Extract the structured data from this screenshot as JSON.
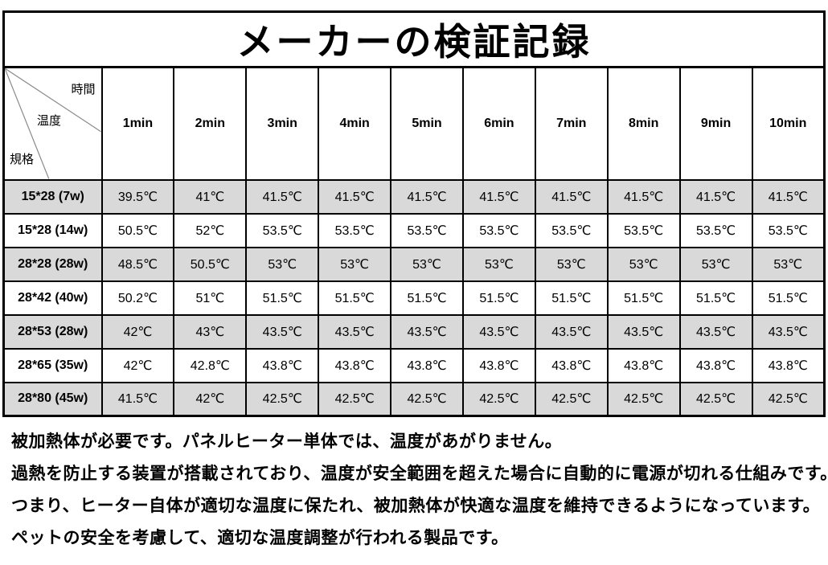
{
  "title": "メーカーの検証記録",
  "table": {
    "corner": {
      "time_label": "時間",
      "temp_label": "温度",
      "spec_label": "規格"
    },
    "time_columns": [
      "1min",
      "2min",
      "3min",
      "4min",
      "5min",
      "6min",
      "7min",
      "8min",
      "9min",
      "10min"
    ],
    "rows": [
      {
        "spec": "15*28 (7w)",
        "shaded": true,
        "temps": [
          "39.5℃",
          "41℃",
          "41.5℃",
          "41.5℃",
          "41.5℃",
          "41.5℃",
          "41.5℃",
          "41.5℃",
          "41.5℃",
          "41.5℃"
        ]
      },
      {
        "spec": "15*28 (14w)",
        "shaded": false,
        "temps": [
          "50.5℃",
          "52℃",
          "53.5℃",
          "53.5℃",
          "53.5℃",
          "53.5℃",
          "53.5℃",
          "53.5℃",
          "53.5℃",
          "53.5℃"
        ]
      },
      {
        "spec": "28*28 (28w)",
        "shaded": true,
        "temps": [
          "48.5℃",
          "50.5℃",
          "53℃",
          "53℃",
          "53℃",
          "53℃",
          "53℃",
          "53℃",
          "53℃",
          "53℃"
        ]
      },
      {
        "spec": "28*42 (40w)",
        "shaded": false,
        "temps": [
          "50.2℃",
          "51℃",
          "51.5℃",
          "51.5℃",
          "51.5℃",
          "51.5℃",
          "51.5℃",
          "51.5℃",
          "51.5℃",
          "51.5℃"
        ]
      },
      {
        "spec": "28*53 (28w)",
        "shaded": true,
        "temps": [
          "42℃",
          "43℃",
          "43.5℃",
          "43.5℃",
          "43.5℃",
          "43.5℃",
          "43.5℃",
          "43.5℃",
          "43.5℃",
          "43.5℃"
        ]
      },
      {
        "spec": "28*65 (35w)",
        "shaded": false,
        "temps": [
          "42℃",
          "42.8℃",
          "43.8℃",
          "43.8℃",
          "43.8℃",
          "43.8℃",
          "43.8℃",
          "43.8℃",
          "43.8℃",
          "43.8℃"
        ]
      },
      {
        "spec": "28*80 (45w)",
        "shaded": true,
        "temps": [
          "41.5℃",
          "42℃",
          "42.5℃",
          "42.5℃",
          "42.5℃",
          "42.5℃",
          "42.5℃",
          "42.5℃",
          "42.5℃",
          "42.5℃"
        ]
      }
    ]
  },
  "notes": [
    "被加熱体が必要です。パネルヒーター単体では、温度があがりません。",
    "過熱を防止する装置が搭載されており、温度が安全範囲を超えた場合に自動的に電源が切れる仕組みです。",
    "つまり、ヒーター自体が適切な温度に保たれ、被加熱体が快適な温度を維持できるようになっています。",
    "ペットの安全を考慮して、適切な温度調整が行われる製品です。"
  ],
  "colors": {
    "row_shade": "#d9d9d9",
    "border": "#000000",
    "diagonal_line": "#8a8a8a"
  }
}
